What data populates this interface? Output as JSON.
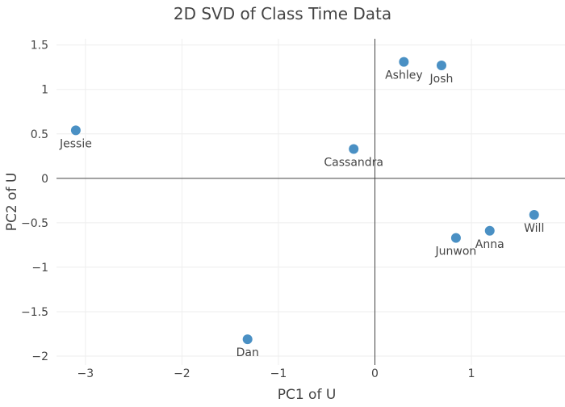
{
  "chart_data": {
    "type": "scatter",
    "title": "2D SVD of Class Time Data",
    "xlabel": "PC1 of U",
    "ylabel": "PC2 of U",
    "xlim": [
      -3.3,
      1.97
    ],
    "ylim": [
      -2.1,
      1.57
    ],
    "x_ticks": [
      -3,
      -2,
      -1,
      0,
      1
    ],
    "x_tick_labels": [
      "−3",
      "−2",
      "−1",
      "0",
      "1"
    ],
    "y_ticks": [
      -2,
      -1.5,
      -1,
      -0.5,
      0,
      0.5,
      1,
      1.5
    ],
    "y_tick_labels": [
      "−2",
      "−1.5",
      "−1",
      "−0.5",
      "0",
      "0.5",
      "1",
      "1.5"
    ],
    "grid": true,
    "marker_color": "#4a90c4",
    "points": [
      {
        "label": "Jessie",
        "x": -3.1,
        "y": 0.54
      },
      {
        "label": "Dan",
        "x": -1.32,
        "y": -1.81
      },
      {
        "label": "Cassandra",
        "x": -0.22,
        "y": 0.33
      },
      {
        "label": "Ashley",
        "x": 0.3,
        "y": 1.31
      },
      {
        "label": "Josh",
        "x": 0.69,
        "y": 1.27
      },
      {
        "label": "Junwon",
        "x": 0.84,
        "y": -0.67
      },
      {
        "label": "Anna",
        "x": 1.19,
        "y": -0.59
      },
      {
        "label": "Will",
        "x": 1.65,
        "y": -0.41
      }
    ]
  }
}
